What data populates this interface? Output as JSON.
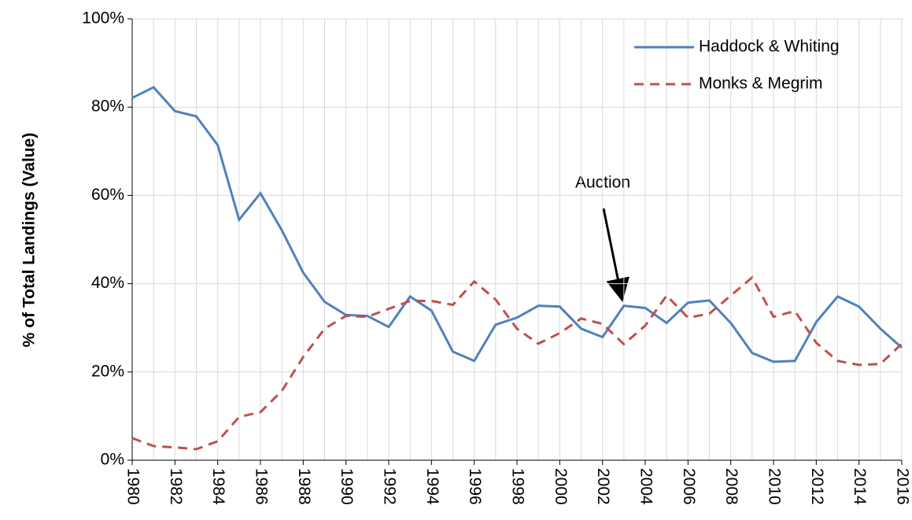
{
  "chart_data": {
    "type": "line",
    "y_label": "% of Total Landings (Value)",
    "annotation": "Auction",
    "x": [
      1980,
      1981,
      1982,
      1983,
      1984,
      1985,
      1986,
      1987,
      1988,
      1989,
      1990,
      1991,
      1992,
      1993,
      1994,
      1995,
      1996,
      1997,
      1998,
      1999,
      2000,
      2001,
      2002,
      2003,
      2004,
      2005,
      2006,
      2007,
      2008,
      2009,
      2010,
      2011,
      2012,
      2013,
      2014,
      2015,
      2016
    ],
    "series": [
      {
        "name": "Haddock & Whiting",
        "color": "#4f81bd",
        "dash": false,
        "values": [
          82.1,
          84.5,
          79.1,
          77.9,
          71.4,
          54.5,
          60.5,
          52.1,
          42.5,
          35.9,
          32.9,
          32.7,
          30.2,
          37.1,
          33.9,
          24.6,
          22.5,
          30.7,
          32.3,
          35,
          34.8,
          29.8,
          27.9,
          35,
          34.5,
          31.1,
          35.7,
          36.2,
          31.1,
          24.3,
          22.3,
          22.5,
          31.3,
          37.1,
          34.8,
          29.8,
          25.5
        ]
      },
      {
        "name": "Monks & Megrim",
        "color": "#c0504d",
        "dash": true,
        "values": [
          5,
          3.2,
          2.9,
          2.5,
          4.3,
          9.8,
          10.9,
          15.7,
          23.4,
          29.8,
          32.7,
          32.5,
          34.3,
          36.1,
          36.1,
          35.2,
          40.5,
          36.4,
          29.8,
          26.4,
          28.8,
          32.1,
          30.9,
          26.3,
          30.5,
          37.3,
          32.3,
          33.2,
          37.3,
          41.4,
          32.5,
          33.8,
          26.6,
          22.5,
          21.6,
          21.8,
          26.4
        ]
      }
    ],
    "xlim": [
      1980,
      2016
    ],
    "xticks": [
      1980,
      1982,
      1984,
      1986,
      1988,
      1990,
      1992,
      1994,
      1996,
      1998,
      2000,
      2002,
      2004,
      2006,
      2008,
      2010,
      2012,
      2014,
      2016
    ],
    "ylim": [
      0,
      100
    ],
    "yticks": [
      {
        "value": 0,
        "label": "0%"
      },
      {
        "value": 20,
        "label": "20%"
      },
      {
        "value": 40,
        "label": "40%"
      },
      {
        "value": 60,
        "label": "60%"
      },
      {
        "value": 80,
        "label": "80%"
      },
      {
        "value": 100,
        "label": "100%"
      }
    ],
    "grid": true,
    "legend": "top-right"
  }
}
